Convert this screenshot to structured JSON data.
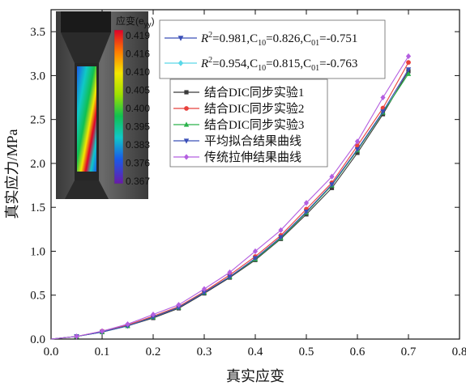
{
  "chart_data": {
    "type": "line",
    "xlabel": "真实应变",
    "ylabel": "真实应力/MPa",
    "xlim": [
      0.0,
      0.8
    ],
    "ylim": [
      0.0,
      3.75
    ],
    "xticks": [
      "0.0",
      "0.1",
      "0.2",
      "0.3",
      "0.4",
      "0.5",
      "0.6",
      "0.7",
      "0.8"
    ],
    "yticks": [
      "0.0",
      "0.5",
      "1.0",
      "1.5",
      "2.0",
      "2.5",
      "3.0",
      "3.5"
    ],
    "grid": false,
    "x": [
      0.0,
      0.05,
      0.1,
      0.15,
      0.2,
      0.25,
      0.3,
      0.35,
      0.4,
      0.45,
      0.5,
      0.55,
      0.6,
      0.65,
      0.7
    ],
    "series": [
      {
        "name": "结合DIC同步实验1",
        "color": "#3a3a3a",
        "marker": "square",
        "values": [
          0.0,
          0.03,
          0.08,
          0.15,
          0.24,
          0.35,
          0.52,
          0.7,
          0.9,
          1.14,
          1.42,
          1.72,
          2.12,
          2.56,
          3.05
        ]
      },
      {
        "name": "结合DIC同步实验2",
        "color": "#e8413c",
        "marker": "circle",
        "values": [
          0.0,
          0.03,
          0.09,
          0.16,
          0.26,
          0.37,
          0.54,
          0.73,
          0.94,
          1.18,
          1.48,
          1.78,
          2.2,
          2.63,
          3.15
        ]
      },
      {
        "name": "结合DIC同步实验3",
        "color": "#2ab24a",
        "marker": "triangle-up",
        "values": [
          0.0,
          0.03,
          0.08,
          0.15,
          0.25,
          0.36,
          0.53,
          0.71,
          0.91,
          1.15,
          1.44,
          1.75,
          2.15,
          2.58,
          3.02
        ]
      },
      {
        "name": "平均拟合结果曲线",
        "color": "#3a4fb8",
        "marker": "triangle-down",
        "values": [
          0.0,
          0.03,
          0.08,
          0.15,
          0.25,
          0.36,
          0.53,
          0.71,
          0.92,
          1.16,
          1.45,
          1.76,
          2.16,
          2.59,
          3.07
        ]
      },
      {
        "name": "传统拉伸结果曲线",
        "color": "#b45fe0",
        "marker": "diamond",
        "values": [
          0.0,
          0.03,
          0.09,
          0.17,
          0.28,
          0.39,
          0.57,
          0.76,
          1.0,
          1.24,
          1.55,
          1.85,
          2.25,
          2.75,
          3.22
        ]
      }
    ],
    "fit_lines": [
      {
        "color": "#3a4fb8",
        "marker": "triangle-down",
        "r2": "0.981",
        "c10": "0.826",
        "c01": "-0.751"
      },
      {
        "color": "#5ad8e8",
        "marker": "diamond",
        "r2": "0.954",
        "c10": "0.815",
        "c01": "-0.763"
      }
    ],
    "inset": {
      "colorbar_title_main": "应变(e",
      "colorbar_title_sub": "yy",
      "colorbar_title_end": ")",
      "colorbar_ticks": [
        "0.419",
        "0.416",
        "0.410",
        "0.405",
        "0.400",
        "0.395",
        "0.383",
        "0.376",
        "0.367"
      ]
    }
  }
}
